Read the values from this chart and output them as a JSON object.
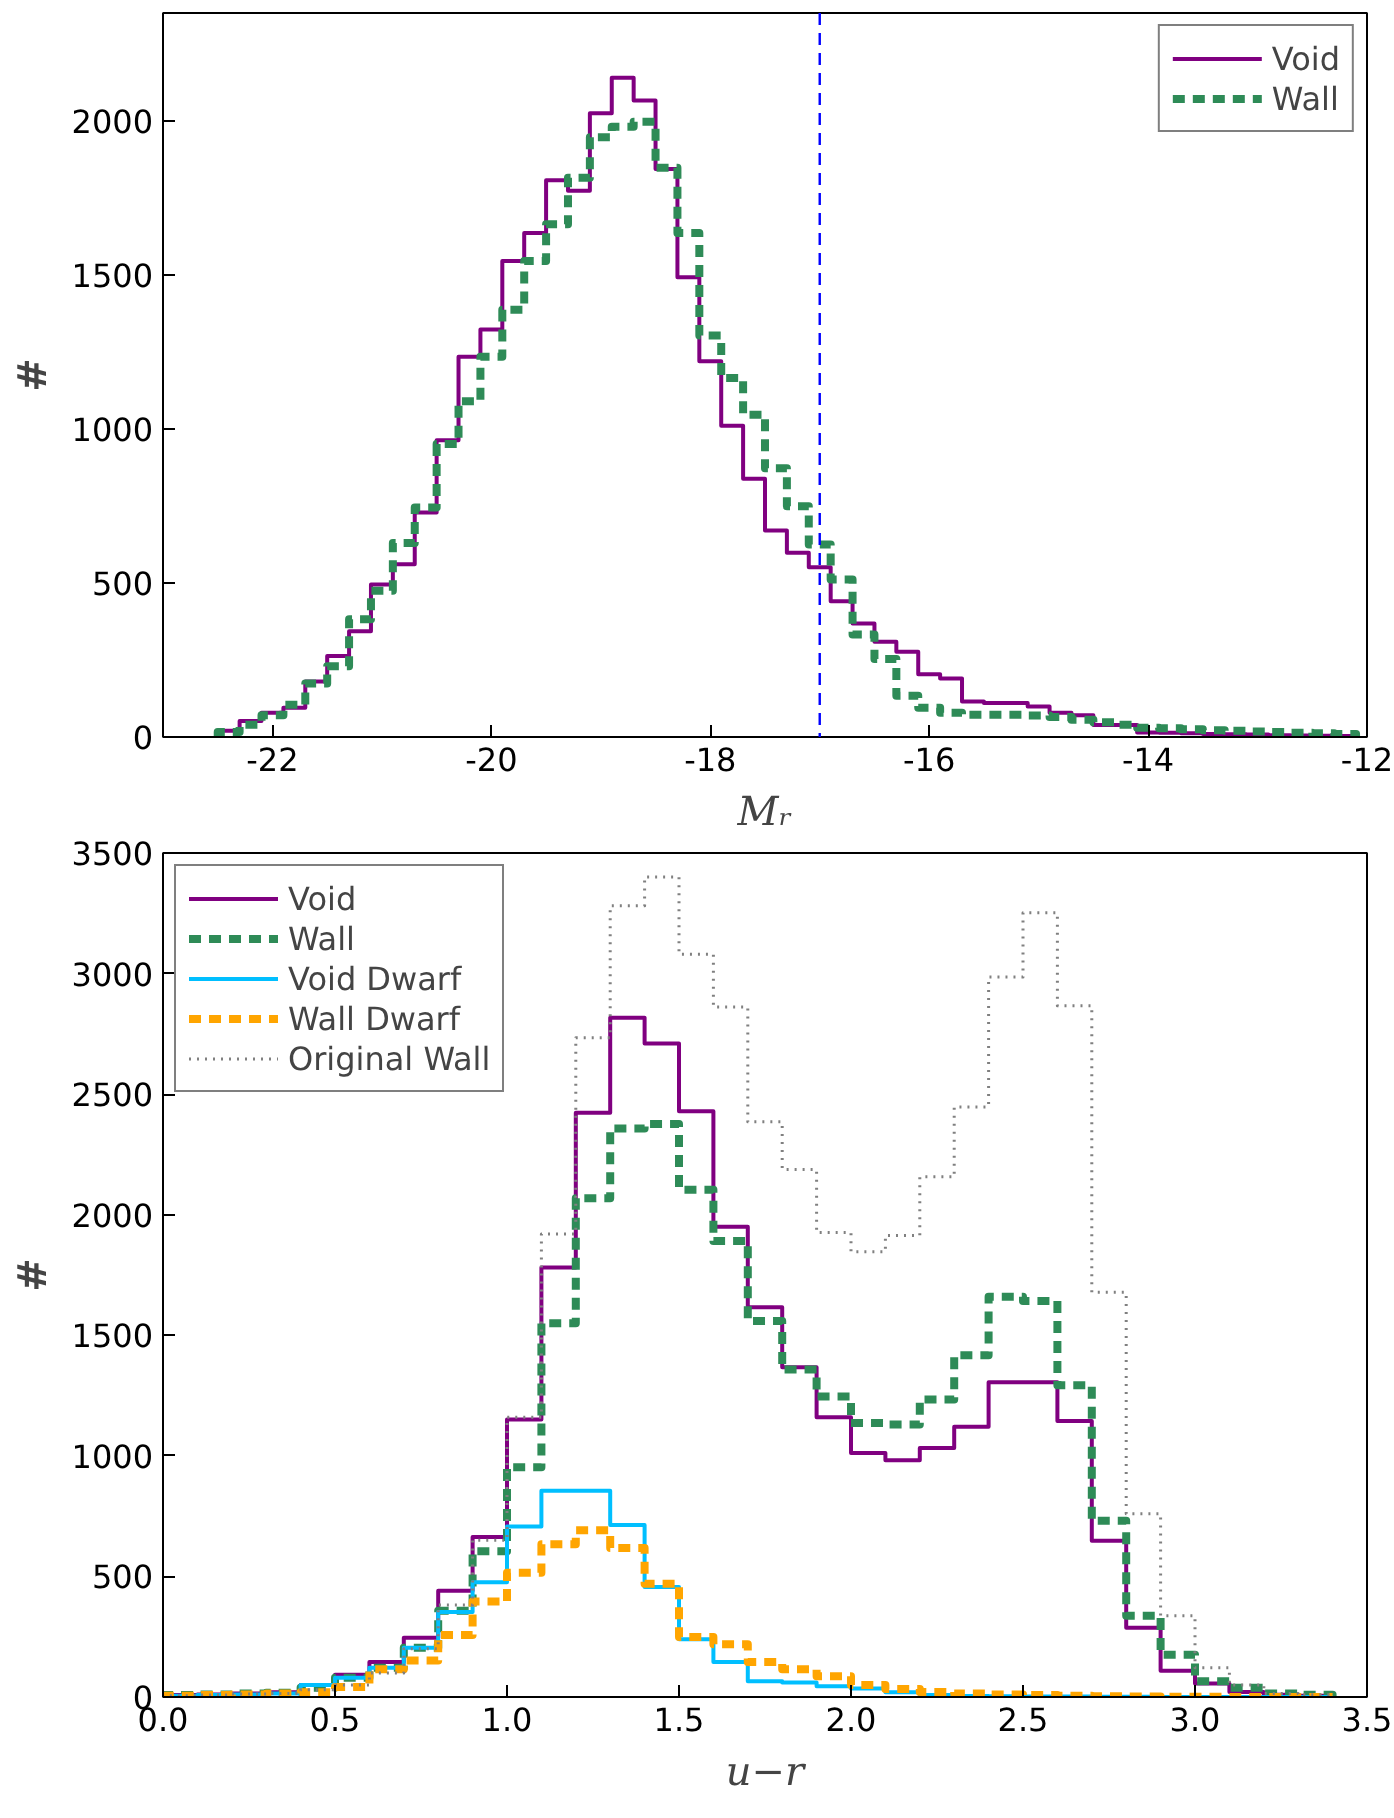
{
  "chart_data": [
    {
      "type": "histogram",
      "xlabel": "Mᵣ",
      "ylabel": "#",
      "bins": [
        -22.5,
        -22.3,
        -22.1,
        -21.9,
        -21.7,
        -21.5,
        -21.3,
        -21.1,
        -20.9,
        -20.7,
        -20.5,
        -20.3,
        -20.1,
        -19.9,
        -19.7,
        -19.5,
        -19.3,
        -19.1,
        -18.9,
        -18.7,
        -18.5,
        -18.3,
        -18.1,
        -17.9,
        -17.7,
        -17.5,
        -17.3,
        -17.1,
        -16.9,
        -16.7,
        -16.5,
        -16.3,
        -16.1,
        -15.9,
        -15.7,
        -15.5,
        -15.3,
        -15.1,
        -14.9,
        -14.7,
        -14.5,
        -14.3,
        -14.1,
        -13.9,
        -13.7,
        -13.5,
        -13.3,
        -13.1,
        -12.9,
        -12.7,
        -12.5,
        -12.3,
        -12.1
      ],
      "series": [
        {
          "name": "Void",
          "color": "#800080",
          "line_style": "solid",
          "values": [
            20,
            52,
            79,
            95,
            180,
            263,
            343,
            495,
            561,
            729,
            963,
            1234,
            1323,
            1545,
            1636,
            1807,
            1773,
            2025,
            2140,
            2066,
            1844,
            1492,
            1220,
            1010,
            838,
            670,
            598,
            551,
            441,
            368,
            309,
            277,
            204,
            190,
            115,
            110,
            110,
            99,
            79,
            71,
            39,
            39,
            15,
            14,
            12,
            10,
            9,
            8,
            6,
            5,
            4,
            3
          ]
        },
        {
          "name": "Wall",
          "color": "#2e8b57",
          "line_style": "dashed",
          "values": [
            16,
            40,
            71,
            105,
            174,
            230,
            382,
            475,
            630,
            745,
            951,
            1090,
            1234,
            1387,
            1545,
            1664,
            1815,
            1947,
            1981,
            1997,
            1848,
            1636,
            1303,
            1165,
            1046,
            872,
            749,
            625,
            511,
            333,
            253,
            134,
            95,
            79,
            72,
            72,
            72,
            70,
            65,
            56,
            48,
            40,
            30,
            28,
            25,
            22,
            20,
            18,
            16,
            14,
            12,
            10
          ]
        }
      ],
      "xlim": [
        -23,
        -12
      ],
      "xticks": [
        -22,
        -20,
        -18,
        -16,
        -14,
        -12
      ],
      "ylim": [
        0,
        2350
      ],
      "yticks": [
        0,
        500,
        1000,
        1500,
        2000
      ],
      "ref_lines": [
        {
          "axis": "x",
          "value": -17,
          "color": "#0000ff",
          "line_style": "dashed"
        }
      ],
      "grid": false,
      "legend": "top right"
    },
    {
      "type": "histogram",
      "xlabel": "u−r",
      "ylabel": "#",
      "bins": [
        0.0,
        0.1,
        0.2,
        0.3,
        0.4,
        0.5,
        0.6,
        0.7,
        0.8,
        0.9,
        1.0,
        1.1,
        1.2,
        1.3,
        1.4,
        1.5,
        1.6,
        1.7,
        1.8,
        1.9,
        2.0,
        2.1,
        2.2,
        2.3,
        2.4,
        2.5,
        2.6,
        2.7,
        2.8,
        2.9,
        3.0,
        3.1,
        3.2,
        3.3,
        3.4
      ],
      "series": [
        {
          "name": "Void",
          "color": "#800080",
          "line_style": "solid",
          "values": [
            8,
            10,
            15,
            20,
            50,
            92,
            145,
            246,
            441,
            663,
            1151,
            1781,
            2423,
            2817,
            2710,
            2429,
            1950,
            1616,
            1367,
            1160,
            1012,
            982,
            1033,
            1121,
            1305,
            1305,
            1145,
            648,
            287,
            109,
            56,
            21,
            9,
            5
          ]
        },
        {
          "name": "Wall",
          "color": "#2e8b57",
          "line_style": "dashed",
          "values": [
            8,
            10,
            14,
            18,
            38,
            80,
            121,
            204,
            358,
            604,
            953,
            1550,
            2068,
            2358,
            2376,
            2104,
            1891,
            1559,
            1358,
            1246,
            1136,
            1130,
            1234,
            1417,
            1660,
            1642,
            1293,
            731,
            337,
            175,
            65,
            38,
            15,
            9
          ]
        },
        {
          "name": "Void Dwarf",
          "color": "#00bfff",
          "line_style": "solid",
          "values": [
            5,
            8,
            10,
            15,
            50,
            80,
            121,
            204,
            352,
            476,
            707,
            855,
            855,
            713,
            456,
            240,
            145,
            65,
            60,
            45,
            35,
            20,
            8,
            4,
            3,
            2,
            2,
            1,
            1,
            0,
            0,
            0,
            0,
            0
          ]
        },
        {
          "name": "Wall Dwarf",
          "color": "#ffa500",
          "line_style": "dashed",
          "values": [
            5,
            8,
            10,
            15,
            20,
            41,
            115,
            151,
            257,
            396,
            515,
            633,
            692,
            618,
            470,
            249,
            219,
            145,
            115,
            86,
            50,
            33,
            21,
            15,
            10,
            8,
            5,
            3,
            2,
            1,
            1,
            0,
            0,
            0
          ]
        },
        {
          "name": "Original Wall",
          "color": "#808080",
          "line_style": "dotted",
          "values": [
            5,
            8,
            12,
            15,
            30,
            50,
            100,
            200,
            382,
            650,
            1160,
            1920,
            2734,
            3281,
            3400,
            3080,
            2861,
            2385,
            2187,
            1926,
            1846,
            1914,
            2157,
            2447,
            2986,
            3252,
            2867,
            1678,
            760,
            337,
            121,
            50,
            15,
            9
          ]
        }
      ],
      "xlim": [
        0,
        3.5
      ],
      "xticks": [
        {
          "value": 0,
          "label": "0.0"
        },
        0.5,
        {
          "value": 1,
          "label": "1.0"
        },
        1.5,
        {
          "value": 2,
          "label": "2.0"
        },
        2.5,
        {
          "value": 3,
          "label": "3.0"
        },
        3.5
      ],
      "ylim": [
        0,
        3500
      ],
      "yticks": [
        0,
        500,
        1000,
        1500,
        2000,
        2500,
        3000,
        3500
      ],
      "grid": false,
      "legend": "top left"
    }
  ]
}
